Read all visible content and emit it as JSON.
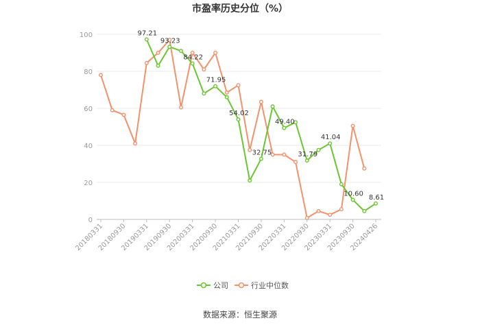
{
  "title": "市盈率历史分位（%）",
  "source": "数据来源：恒生聚源",
  "colors": {
    "company": "#6ac62f",
    "industry": "#f4906a",
    "grid": "#e8e8e8",
    "axis": "#bbbbbb"
  },
  "chart_data": {
    "type": "line",
    "title": "市盈率历史分位（%）",
    "ylim": [
      0,
      100
    ],
    "yticks": [
      0,
      20,
      40,
      60,
      80,
      100
    ],
    "grid": true,
    "legend_position": "bottom",
    "x_tick_labels": [
      "20180331",
      "20180930",
      "20190331",
      "20190930",
      "20200331",
      "20200930",
      "20210331",
      "20210930",
      "20220331",
      "20220930",
      "20230331",
      "20230930",
      "20240426"
    ],
    "x": [
      "20180331",
      "20180630",
      "20180930",
      "20181231",
      "20190331",
      "20190630",
      "20190930",
      "20191231",
      "20200331",
      "20200630",
      "20200930",
      "20201231",
      "20210331",
      "20210630",
      "20210930",
      "20211231",
      "20220331",
      "20220630",
      "20220930",
      "20221231",
      "20230331",
      "20230630",
      "20230930",
      "20231231",
      "20240426"
    ],
    "series": [
      {
        "name": "公司",
        "color": "#6ac62f",
        "values": [
          null,
          null,
          null,
          null,
          97.21,
          83,
          93.23,
          91,
          84.22,
          68,
          71.95,
          66,
          54.02,
          21,
          32.75,
          61,
          49.4,
          52.5,
          31.79,
          37.5,
          41.04,
          19,
          10.6,
          4.5,
          8.61
        ],
        "labels": [
          null,
          null,
          null,
          null,
          "97.21",
          null,
          "93.23",
          null,
          "84.22",
          null,
          "71.95",
          null,
          "54.02",
          null,
          "32.75",
          null,
          "49.40",
          null,
          "31.79",
          null,
          "41.04",
          null,
          "10.60",
          null,
          "8.61"
        ]
      },
      {
        "name": "行业中位数",
        "color": "#f4906a",
        "values": [
          78,
          59,
          56.5,
          41,
          84.5,
          90,
          97,
          60.5,
          90,
          81,
          90,
          68.5,
          72.5,
          37.5,
          63.5,
          35,
          35,
          31,
          0.8,
          4.5,
          2.5,
          5.5,
          50.5,
          27.5,
          null
        ]
      }
    ]
  }
}
